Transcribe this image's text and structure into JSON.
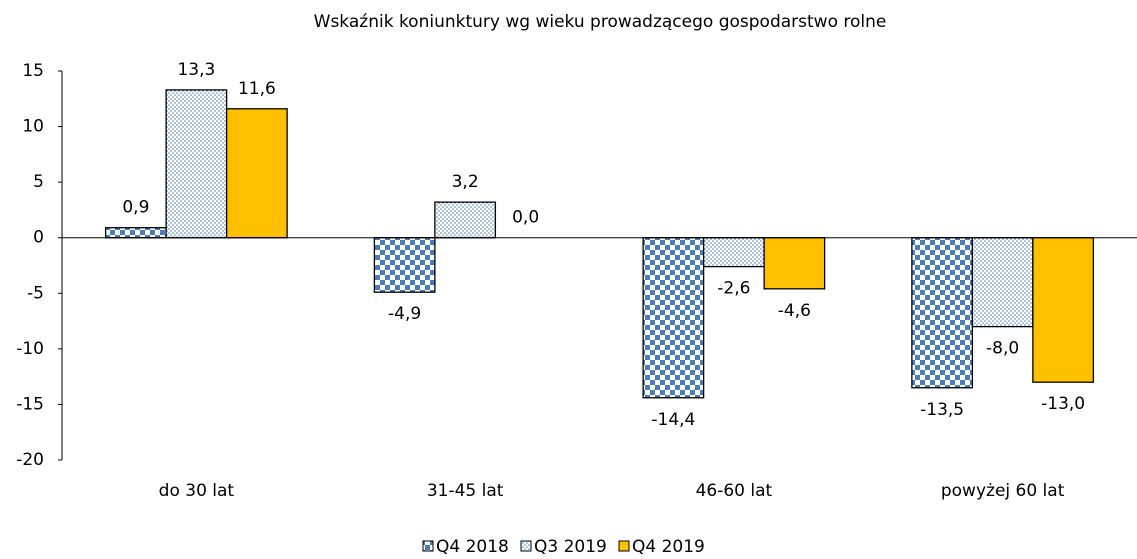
{
  "chart_data": {
    "type": "bar",
    "title": "Wskaźnik koniunktury wg wieku prowadzącego gospodarstwo rolne",
    "categories": [
      "do 30 lat",
      "31-45 lat",
      "46-60 lat",
      "powyżej 60 lat"
    ],
    "series": [
      {
        "name": "Q4 2018",
        "color": "#4a7ebb",
        "pattern": "checker",
        "values": [
          0.9,
          -4.9,
          -14.4,
          -13.5
        ],
        "value_labels": [
          "0,9",
          "-4,9",
          "-14,4",
          "-13,5"
        ]
      },
      {
        "name": "Q3 2019",
        "color": "#4a7ebb",
        "pattern": "dots",
        "values": [
          13.3,
          3.2,
          -2.6,
          -8.0
        ],
        "value_labels": [
          "13,3",
          "3,2",
          "-2,6",
          "-8,0"
        ]
      },
      {
        "name": "Q4 2019",
        "color": "#ffc000",
        "pattern": "solid",
        "values": [
          11.6,
          0.0,
          -4.6,
          -13.0
        ],
        "value_labels": [
          "11,6",
          "0,0",
          "-4,6",
          "-13,0"
        ]
      }
    ],
    "ylim": [
      -20,
      15
    ],
    "yticks": [
      -20,
      -15,
      -10,
      -5,
      0,
      5,
      10,
      15
    ],
    "grid": false,
    "legend": "bottom"
  }
}
